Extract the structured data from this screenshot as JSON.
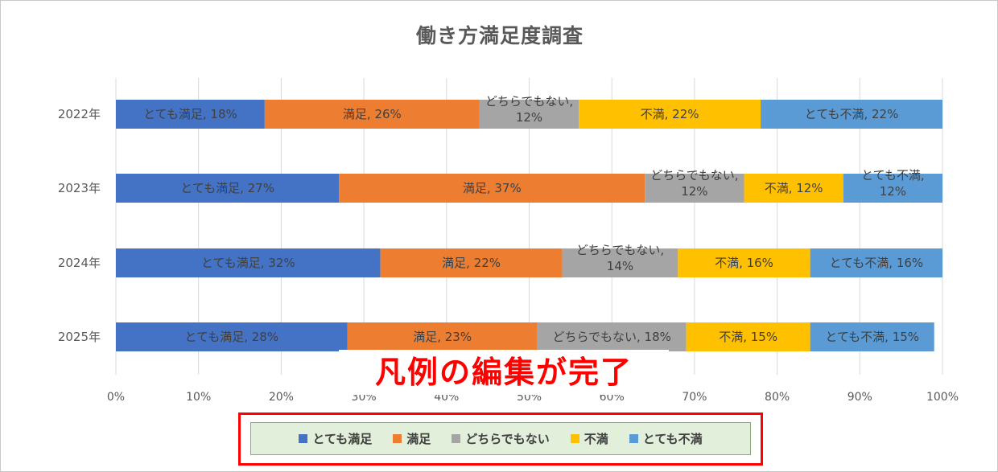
{
  "chart_data": {
    "type": "bar",
    "orientation": "horizontal",
    "stacked": "100%",
    "title": "働き方満足度調査",
    "categories": [
      "2022年",
      "2023年",
      "2024年",
      "2025年"
    ],
    "series": [
      {
        "name": "とても満足",
        "color": "#4472c4",
        "values": [
          18,
          27,
          32,
          28
        ]
      },
      {
        "name": "満足",
        "color": "#ed7d31",
        "values": [
          26,
          37,
          22,
          23
        ]
      },
      {
        "name": "どちらでもない",
        "color": "#a5a5a5",
        "values": [
          12,
          12,
          14,
          18
        ]
      },
      {
        "name": "不満",
        "color": "#ffc000",
        "values": [
          22,
          12,
          16,
          15
        ]
      },
      {
        "name": "とても不満",
        "color": "#5b9bd5",
        "values": [
          22,
          12,
          16,
          15
        ]
      }
    ],
    "data_labels": [
      [
        "とても満足, 18%",
        "満足, 26%",
        "どちらでもない, 12%",
        "不満, 22%",
        "とても不満, 22%"
      ],
      [
        "とても満足, 27%",
        "満足, 37%",
        "どちらでもない, 12%",
        "不満, 12%",
        "とても不満, 12%"
      ],
      [
        "とても満足, 32%",
        "満足, 22%",
        "どちらでもない, 14%",
        "不満, 16%",
        "とても不満, 16%"
      ],
      [
        "とても満足, 28%",
        "満足, 23%",
        "どちらでもない, 18%",
        "不満, 15%",
        "とても不満, 15%"
      ]
    ],
    "xlim": [
      0,
      100
    ],
    "x_ticks": [
      "0%",
      "10%",
      "20%",
      "30%",
      "40%",
      "50%",
      "60%",
      "70%",
      "80%",
      "90%",
      "100%"
    ],
    "grid": true,
    "legend_position": "bottom"
  },
  "annotation": "凡例の編集が完了"
}
